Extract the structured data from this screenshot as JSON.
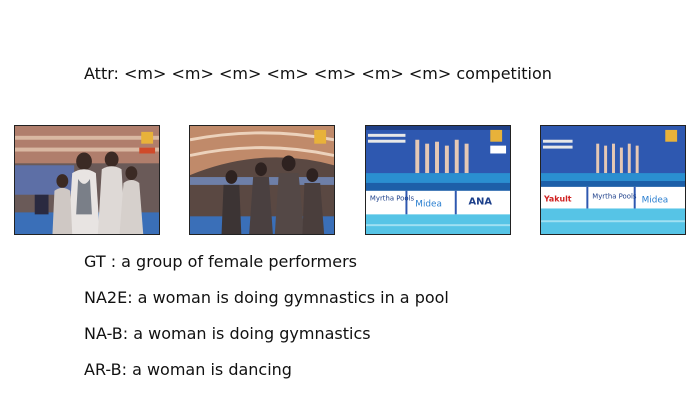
{
  "attr_line": "Attr: <m> <m> <m> <m> <m> <m> <m> competition",
  "frames": [
    {
      "banner_text": []
    },
    {
      "banner_text": []
    },
    {
      "banner_text": [
        "Myrtha Pools",
        "Midea",
        "ANA"
      ]
    },
    {
      "banner_text": [
        "Yakult",
        "Myrtha Pools",
        "Midea"
      ]
    }
  ],
  "captions": {
    "gt": "GT  : a group of female performers",
    "na2e": "NA2E: a woman is doing gymnastics in a pool",
    "nab": "NA-B: a woman is doing gymnastics",
    "arb": "AR-B: a woman is dancing"
  }
}
